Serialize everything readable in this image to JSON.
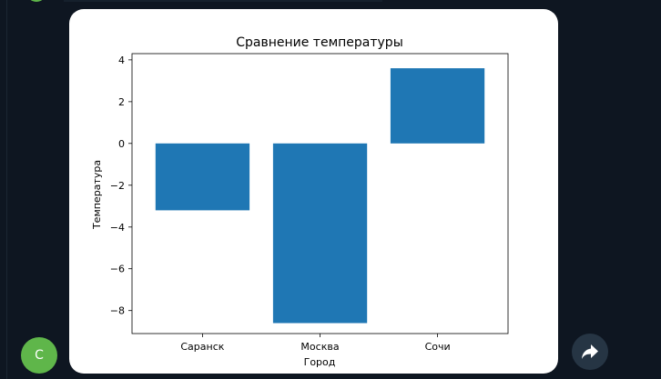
{
  "chat": {
    "sender_initial": "С",
    "forward_icon": "forward-arrow-icon",
    "colors": {
      "background": "#0e1621",
      "avatar": "#5fb64a",
      "forward_button": "#263544",
      "card": "#ffffff"
    }
  },
  "chart_data": {
    "type": "bar",
    "title": "Сравнение температуры",
    "xlabel": "Город",
    "ylabel": "Температура",
    "categories": [
      "Саранск",
      "Москва",
      "Сочи"
    ],
    "values": [
      -3.2,
      -8.6,
      3.6
    ],
    "ylim": [
      -9.1,
      4.3
    ],
    "yticks": [
      4,
      2,
      0,
      -2,
      -4,
      -6,
      -8
    ],
    "ytick_labels": [
      "4",
      "2",
      "0",
      "−2",
      "−4",
      "−6",
      "−8"
    ],
    "grid": false,
    "bar_color": "#1f77b4"
  }
}
